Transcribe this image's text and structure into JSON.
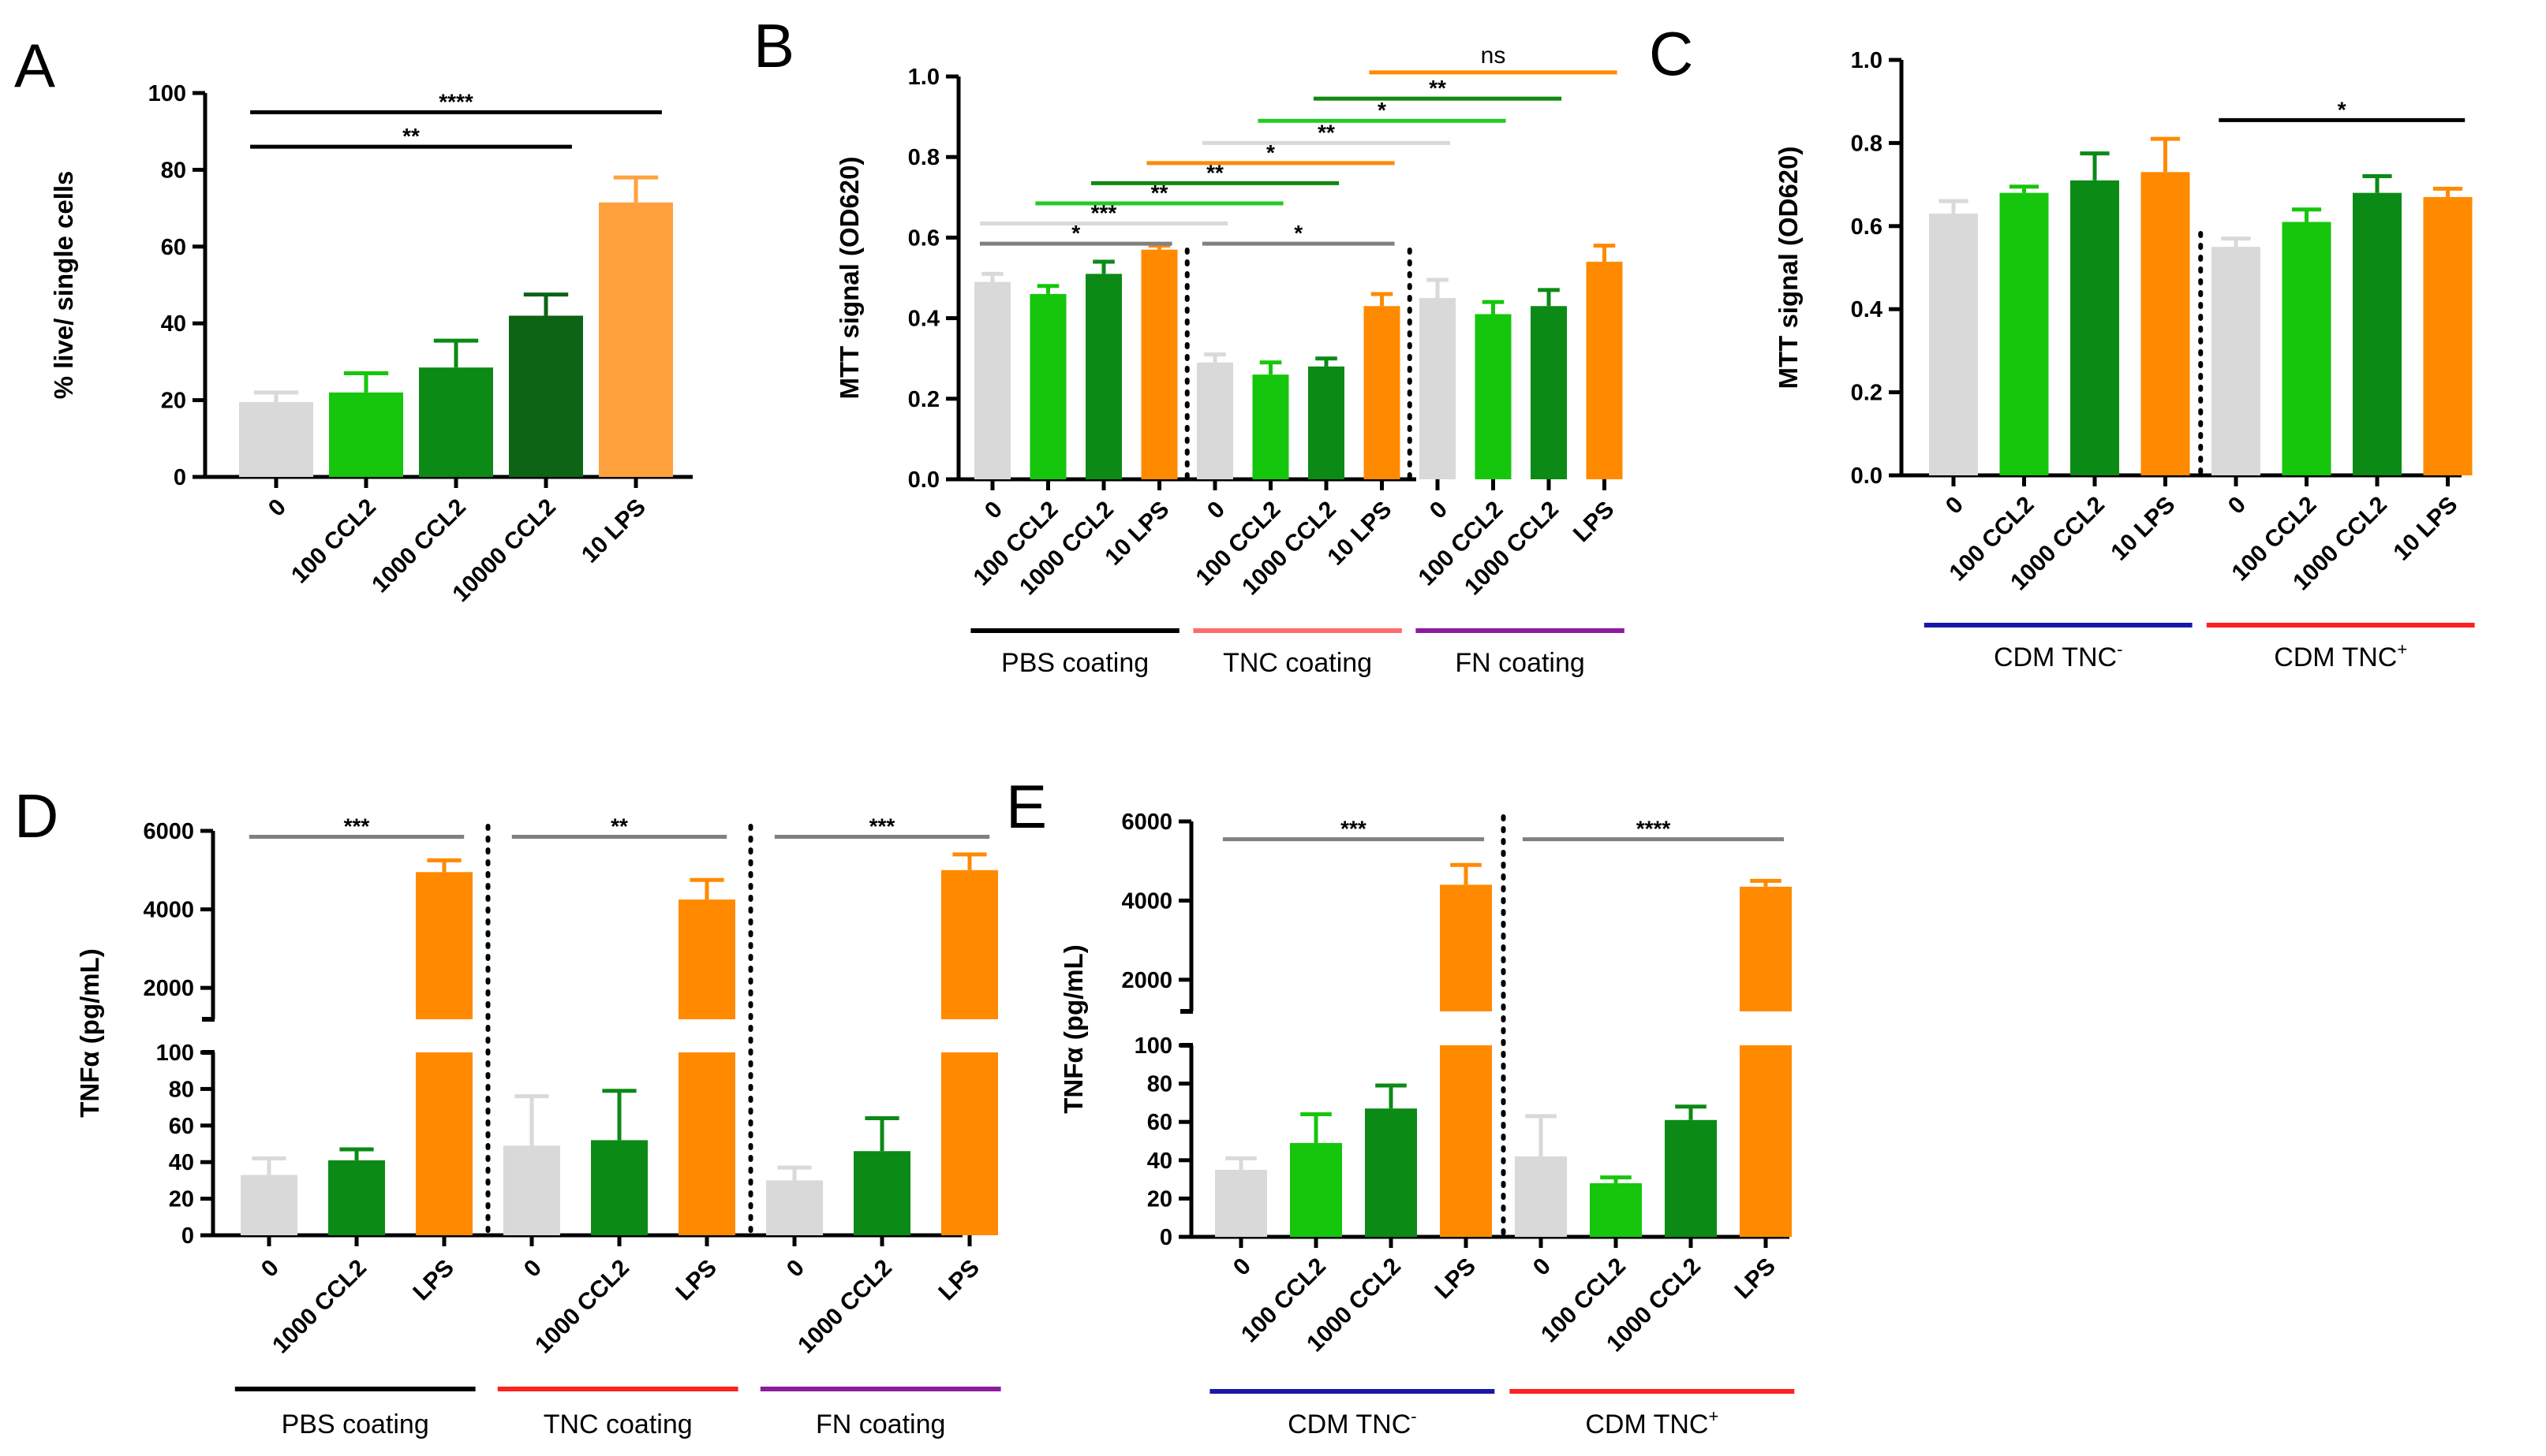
{
  "colors": {
    "grey": "#d9d9d9",
    "green": "#16c60c",
    "darkgreen": "#0b8a16",
    "deepgreen": "#0c6414",
    "orange": "#ff8a00",
    "lightorange": "#ffa23d",
    "black": "#000000",
    "red": "#ff2020",
    "lightred": "#ff6b6b",
    "purple": "#8a1c9e",
    "blue": "#1818a8",
    "sigGrey": "#808080",
    "sigBlack": "#000000",
    "sigGreen": "#22cc22",
    "sigDarkGreen": "#118811",
    "sigOrange": "#ff8a00",
    "sigLightGrey": "#d9d9d9"
  },
  "chart_data": [
    {
      "id": "A",
      "type": "bar",
      "panel_label": "A",
      "ylabel": "% live/ single cells",
      "ylim": [
        0,
        100
      ],
      "yticks": [
        0,
        20,
        40,
        60,
        80,
        100
      ],
      "categories": [
        "0",
        "100 CCL2",
        "1000 CCL2",
        "10000 CCL2",
        "10 LPS"
      ],
      "values": [
        19.5,
        22,
        28.5,
        42,
        71.5
      ],
      "errors": [
        2.5,
        5,
        7,
        5.5,
        6.5
      ],
      "bar_colors": [
        "grey",
        "green",
        "darkgreen",
        "deepgreen",
        "lightorange"
      ],
      "significance": [
        {
          "from": 0,
          "to": 4,
          "label": "****",
          "color": "sigBlack",
          "y": 95
        },
        {
          "from": 0,
          "to": 3,
          "label": "**",
          "color": "sigBlack",
          "y": 86
        }
      ]
    },
    {
      "id": "B",
      "type": "bar",
      "panel_label": "B",
      "ylabel": "MTT signal (OD620)",
      "ylim": [
        0,
        1.0
      ],
      "yticks": [
        0.0,
        0.2,
        0.4,
        0.6,
        0.8,
        1.0
      ],
      "categories": [
        "0",
        "100 CCL2",
        "1000 CCL2",
        "10 LPS",
        "0",
        "100 CCL2",
        "1000 CCL2",
        "10 LPS",
        "0",
        "100 CCL2",
        "1000 CCL2",
        "LPS"
      ],
      "values": [
        0.49,
        0.46,
        0.51,
        0.57,
        0.29,
        0.26,
        0.28,
        0.43,
        0.45,
        0.41,
        0.43,
        0.54
      ],
      "errors": [
        0.02,
        0.02,
        0.03,
        0.01,
        0.02,
        0.03,
        0.02,
        0.03,
        0.045,
        0.03,
        0.04,
        0.04
      ],
      "bar_colors": [
        "grey",
        "green",
        "darkgreen",
        "orange",
        "grey",
        "green",
        "darkgreen",
        "orange",
        "grey",
        "green",
        "darkgreen",
        "orange"
      ],
      "dividers_after": [
        3,
        7
      ],
      "groups": [
        {
          "label": "PBS coating",
          "from": 0,
          "to": 3,
          "color": "black"
        },
        {
          "label": "TNC coating",
          "from": 4,
          "to": 7,
          "color": "lightred"
        },
        {
          "label": "FN coating",
          "from": 8,
          "to": 11,
          "color": "purple"
        }
      ],
      "significance": [
        {
          "from": 0,
          "to": 3,
          "label": "*",
          "color": "sigGrey",
          "y": 0.585
        },
        {
          "from": 4,
          "to": 7,
          "label": "*",
          "color": "sigGrey",
          "y": 0.585
        },
        {
          "from": 0,
          "to": 4,
          "label": "***",
          "color": "sigLightGrey",
          "y": 0.635
        },
        {
          "from": 1,
          "to": 5,
          "label": "**",
          "color": "sigGreen",
          "y": 0.685
        },
        {
          "from": 2,
          "to": 6,
          "label": "**",
          "color": "sigDarkGreen",
          "y": 0.735
        },
        {
          "from": 3,
          "to": 7,
          "label": "*",
          "color": "sigOrange",
          "y": 0.785
        },
        {
          "from": 4,
          "to": 8,
          "label": "**",
          "color": "sigLightGrey",
          "y": 0.835
        },
        {
          "from": 5,
          "to": 9,
          "label": "*",
          "color": "sigGreen",
          "y": 0.89
        },
        {
          "from": 6,
          "to": 10,
          "label": "**",
          "color": "sigDarkGreen",
          "y": 0.945
        },
        {
          "from": 7,
          "to": 11,
          "label": "ns",
          "color": "sigOrange",
          "y": 1.01
        }
      ]
    },
    {
      "id": "C",
      "type": "bar",
      "panel_label": "C",
      "ylabel": "MTT signal (OD620)",
      "ylim": [
        0,
        1.0
      ],
      "yticks": [
        0.0,
        0.2,
        0.4,
        0.6,
        0.8,
        1.0
      ],
      "categories": [
        "0",
        "100 CCL2",
        "1000 CCL2",
        "10  LPS",
        "0",
        "100 CCL2",
        "1000 CCL2",
        "10 LPS"
      ],
      "values": [
        0.63,
        0.68,
        0.71,
        0.73,
        0.55,
        0.61,
        0.68,
        0.67
      ],
      "errors": [
        0.03,
        0.015,
        0.065,
        0.08,
        0.02,
        0.03,
        0.04,
        0.02
      ],
      "bar_colors": [
        "grey",
        "green",
        "darkgreen",
        "orange",
        "grey",
        "green",
        "darkgreen",
        "orange"
      ],
      "dividers_after": [
        3
      ],
      "groups": [
        {
          "label": "CDM TNC",
          "sup": "-",
          "from": 0,
          "to": 3,
          "color": "blue"
        },
        {
          "label": "CDM TNC",
          "sup": "+",
          "from": 4,
          "to": 7,
          "color": "red"
        }
      ],
      "significance": [
        {
          "from": 4,
          "to": 7,
          "label": "*",
          "color": "sigBlack",
          "y": 0.855
        }
      ]
    },
    {
      "id": "D",
      "type": "bar",
      "panel_label": "D",
      "ylabel": "TNFα (pg/mL)",
      "broken_axis": true,
      "upper_ylim": [
        1200,
        6000
      ],
      "upper_yticks": [
        2000,
        4000,
        6000
      ],
      "lower_ylim": [
        0,
        100
      ],
      "lower_yticks": [
        0,
        20,
        40,
        60,
        80,
        100
      ],
      "categories": [
        "0",
        "1000 CCL2",
        "LPS",
        "0",
        "1000 CCL2",
        "LPS",
        "0",
        "1000 CCL2",
        "LPS"
      ],
      "values": [
        33,
        41,
        4950,
        49,
        52,
        4250,
        30,
        46,
        5000
      ],
      "errors": [
        9,
        6,
        300,
        27,
        27,
        500,
        7,
        18,
        400
      ],
      "bar_colors": [
        "grey",
        "darkgreen",
        "orange",
        "grey",
        "darkgreen",
        "orange",
        "grey",
        "darkgreen",
        "orange"
      ],
      "dividers_after": [
        2,
        5
      ],
      "groups": [
        {
          "label": "PBS coating",
          "from": 0,
          "to": 2,
          "color": "black"
        },
        {
          "label": "TNC coating",
          "from": 3,
          "to": 5,
          "color": "red"
        },
        {
          "label": "FN coating",
          "from": 6,
          "to": 8,
          "color": "purple"
        }
      ],
      "significance": [
        {
          "from": 0,
          "to": 2,
          "label": "***",
          "color": "sigGrey",
          "y": 5850
        },
        {
          "from": 3,
          "to": 5,
          "label": "**",
          "color": "sigGrey",
          "y": 5850
        },
        {
          "from": 6,
          "to": 8,
          "label": "***",
          "color": "sigGrey",
          "y": 5850
        }
      ]
    },
    {
      "id": "E",
      "type": "bar",
      "panel_label": "E",
      "ylabel": "TNFα (pg/mL)",
      "broken_axis": true,
      "upper_ylim": [
        1200,
        6000
      ],
      "upper_yticks": [
        2000,
        4000,
        6000
      ],
      "lower_ylim": [
        0,
        100
      ],
      "lower_yticks": [
        0,
        20,
        40,
        60,
        80,
        100
      ],
      "categories": [
        "0",
        "100 CCL2",
        "1000 CCL2",
        "LPS",
        "0",
        "100 CCL2",
        "1000 CCL2",
        "LPS"
      ],
      "values": [
        35,
        49,
        67,
        4400,
        42,
        28,
        61,
        4350
      ],
      "errors": [
        6,
        15,
        12,
        500,
        21,
        3,
        7,
        150
      ],
      "bar_colors": [
        "grey",
        "green",
        "darkgreen",
        "orange",
        "grey",
        "green",
        "darkgreen",
        "orange"
      ],
      "dividers_after": [
        3
      ],
      "groups": [
        {
          "label": "CDM TNC",
          "sup": "-",
          "from": 0,
          "to": 3,
          "color": "blue"
        },
        {
          "label": "CDM TNC",
          "sup": "+",
          "from": 4,
          "to": 7,
          "color": "red"
        }
      ],
      "significance": [
        {
          "from": 0,
          "to": 3,
          "label": "***",
          "color": "sigGrey",
          "y": 5550
        },
        {
          "from": 4,
          "to": 7,
          "label": "****",
          "color": "sigGrey",
          "y": 5550
        }
      ]
    }
  ]
}
